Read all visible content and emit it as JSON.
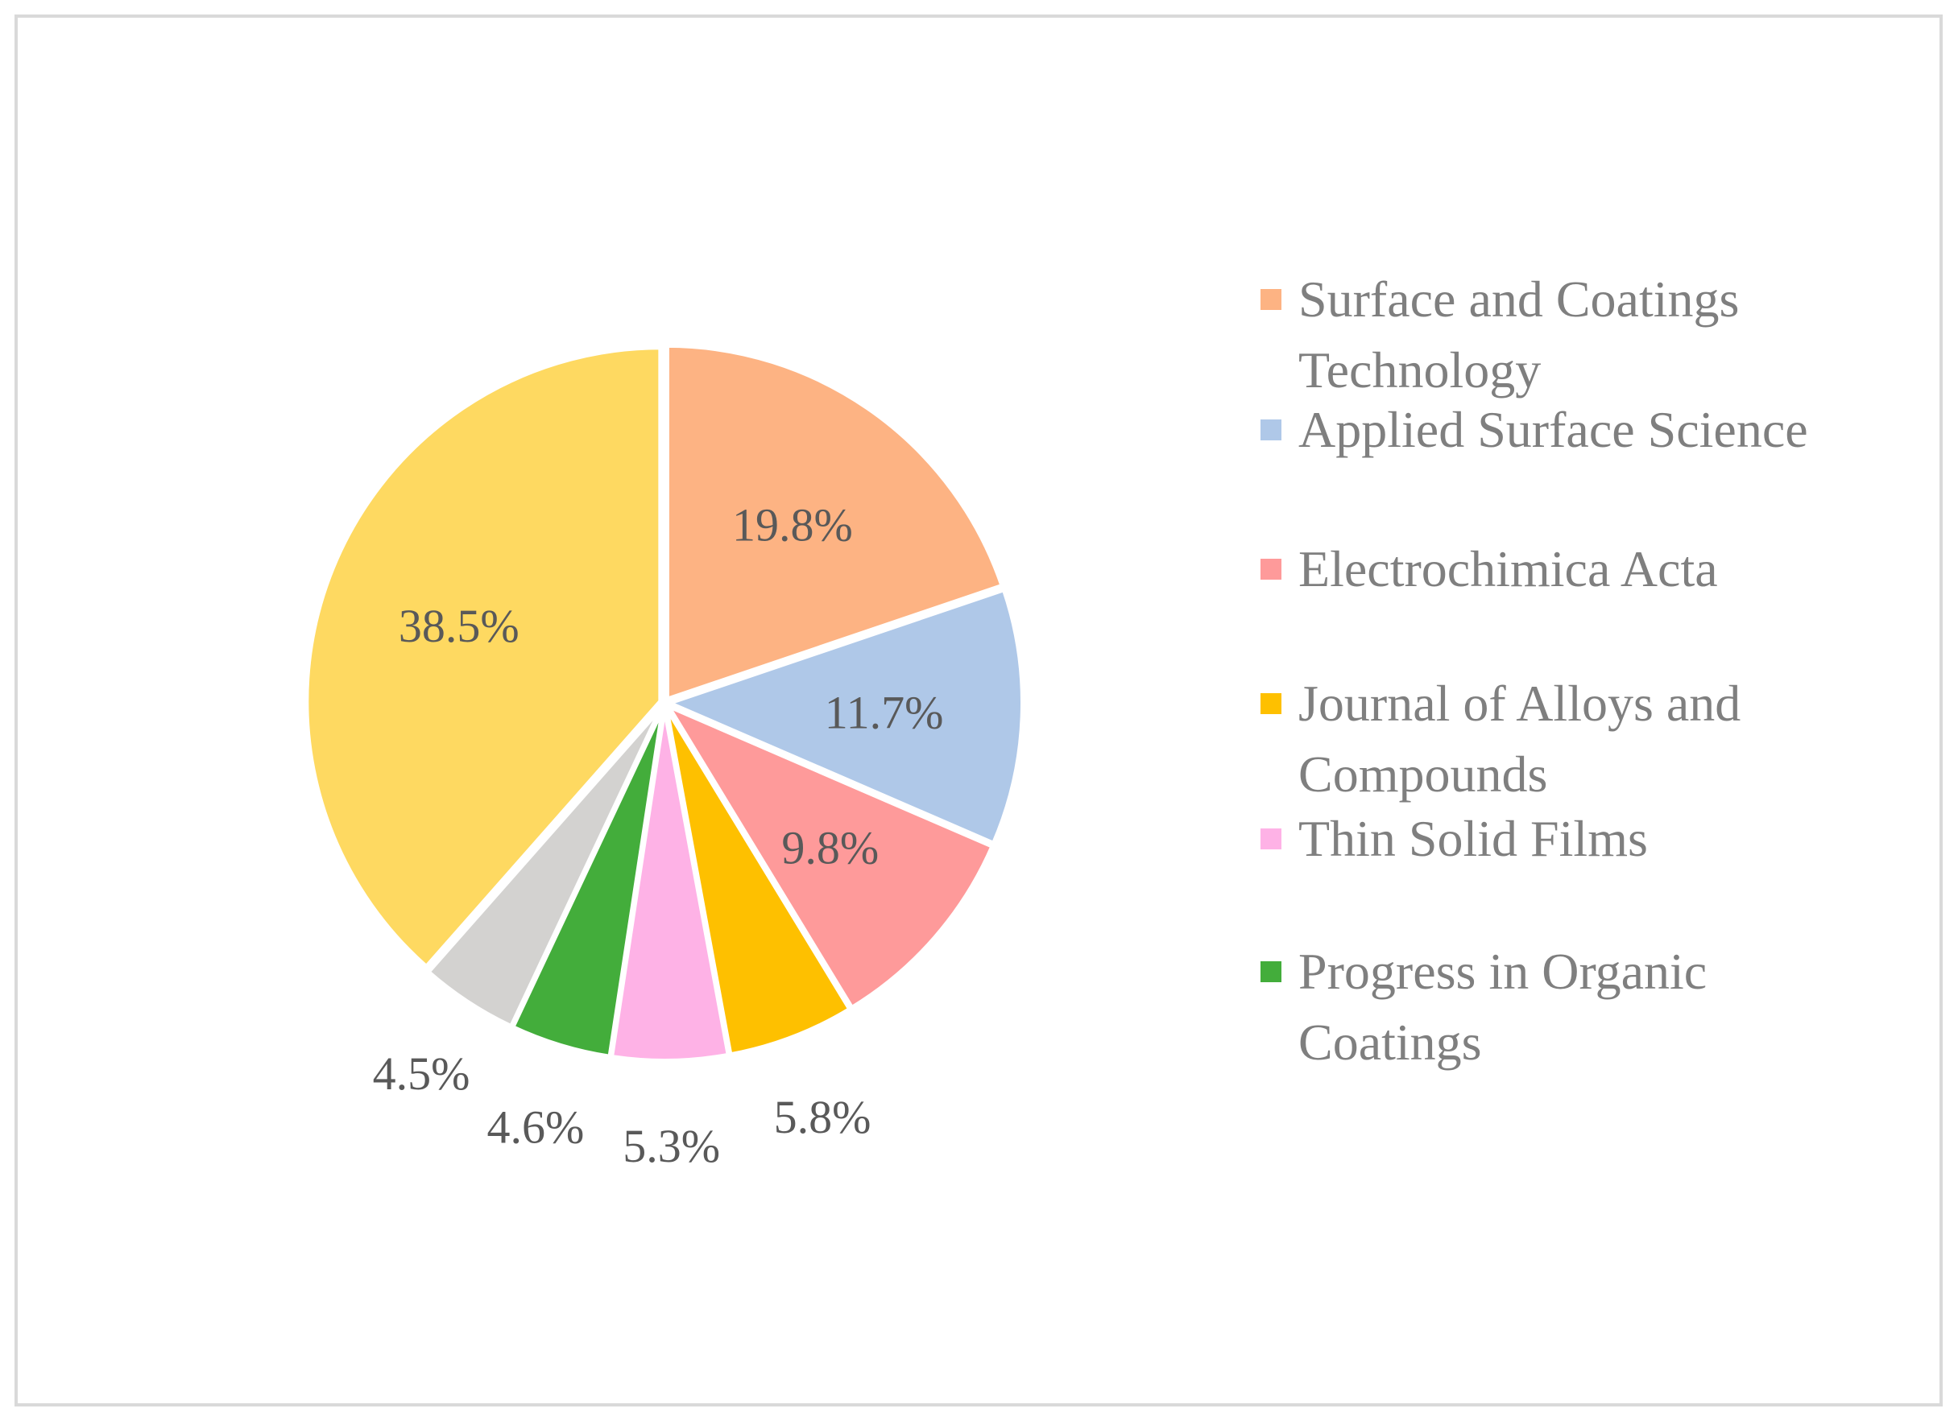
{
  "chart_data": {
    "type": "pie",
    "title": "",
    "slices": [
      {
        "label": "Surface and Coatings Technology",
        "value": 19.8,
        "display": "19.8%",
        "color": "#FDB383",
        "legend": true,
        "label_inside": true
      },
      {
        "label": "Applied Surface Science",
        "value": 11.7,
        "display": "11.7%",
        "color": "#AFC8E8",
        "legend": true,
        "label_inside": true
      },
      {
        "label": "Electrochimica Acta",
        "value": 9.8,
        "display": "9.8%",
        "color": "#FE9A9A",
        "legend": true,
        "label_inside": true
      },
      {
        "label": "Journal of Alloys and Compounds",
        "value": 5.8,
        "display": "5.8%",
        "color": "#FEC000",
        "legend": true,
        "label_inside": false
      },
      {
        "label": "Thin Solid Films",
        "value": 5.3,
        "display": "5.3%",
        "color": "#FEB2E6",
        "legend": true,
        "label_inside": false
      },
      {
        "label": "Progress in Organic Coatings",
        "value": 4.6,
        "display": "4.6%",
        "color": "#43AD3B",
        "legend": true,
        "label_inside": false
      },
      {
        "label": "",
        "value": 4.5,
        "display": "4.5%",
        "color": "#D3D2D0",
        "legend": false,
        "label_inside": false
      },
      {
        "label": "",
        "value": 38.5,
        "display": "38.5%",
        "color": "#FED961",
        "legend": false,
        "label_inside": true
      }
    ],
    "legend": {
      "placement": "right",
      "entries": [
        {
          "lines": [
            "Surface and Coatings",
            "Technology"
          ],
          "color": "#FDB383"
        },
        {
          "lines": [
            "Applied Surface Science"
          ],
          "color": "#AFC8E8"
        },
        {
          "lines": [
            "Electrochimica Acta"
          ],
          "color": "#FE9A9A"
        },
        {
          "lines": [
            "Journal of Alloys and",
            "Compounds"
          ],
          "color": "#FEC000"
        },
        {
          "lines": [
            "Thin Solid Films"
          ],
          "color": "#FEB2E6"
        },
        {
          "lines": [
            "Progress in Organic",
            "Coatings"
          ],
          "color": "#43AD3B"
        }
      ]
    },
    "text_color": "#595959",
    "legend_text_color": "#7F7F7F",
    "frame_color": "#D9D9D9"
  }
}
